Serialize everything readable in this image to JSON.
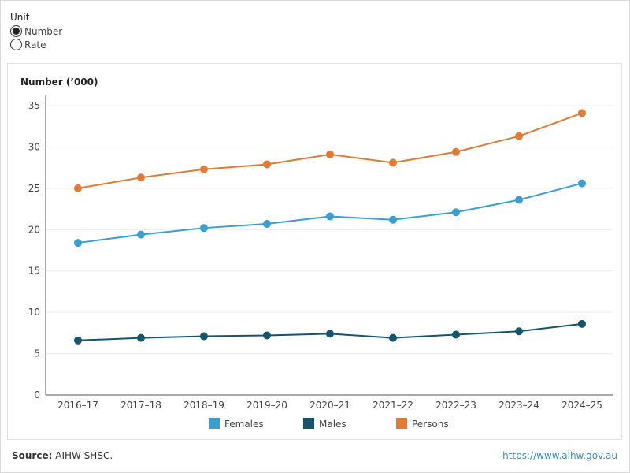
{
  "unit": {
    "title": "Unit",
    "options": [
      {
        "label": "Number",
        "selected": true
      },
      {
        "label": "Rate",
        "selected": false
      }
    ]
  },
  "chart_data": {
    "type": "line",
    "ylabel": "Number (’000)",
    "categories": [
      "2016–17",
      "2017–18",
      "2018–19",
      "2019–20",
      "2020–21",
      "2021–22",
      "2022–23",
      "2023–24",
      "2024–25"
    ],
    "ylim": [
      0,
      35
    ],
    "yticks": [
      0,
      5,
      10,
      15,
      20,
      25,
      30,
      35
    ],
    "grid": true,
    "legend_placement": "bottom",
    "series": [
      {
        "name": "Females",
        "color": "#3a9fd0",
        "values": [
          18.4,
          19.4,
          20.2,
          20.7,
          21.6,
          21.2,
          22.1,
          23.6,
          25.6
        ]
      },
      {
        "name": "Males",
        "color": "#16556e",
        "values": [
          6.6,
          6.9,
          7.1,
          7.2,
          7.4,
          6.9,
          7.3,
          7.7,
          8.6
        ]
      },
      {
        "name": "Persons",
        "color": "#e07a34",
        "values": [
          25.0,
          26.3,
          27.3,
          27.9,
          29.1,
          28.1,
          29.4,
          31.3,
          34.1
        ]
      }
    ]
  },
  "footer": {
    "source_label": "Source:",
    "source_text": "AIHW SHSC.",
    "link": "https://www.aihw.gov.au"
  }
}
